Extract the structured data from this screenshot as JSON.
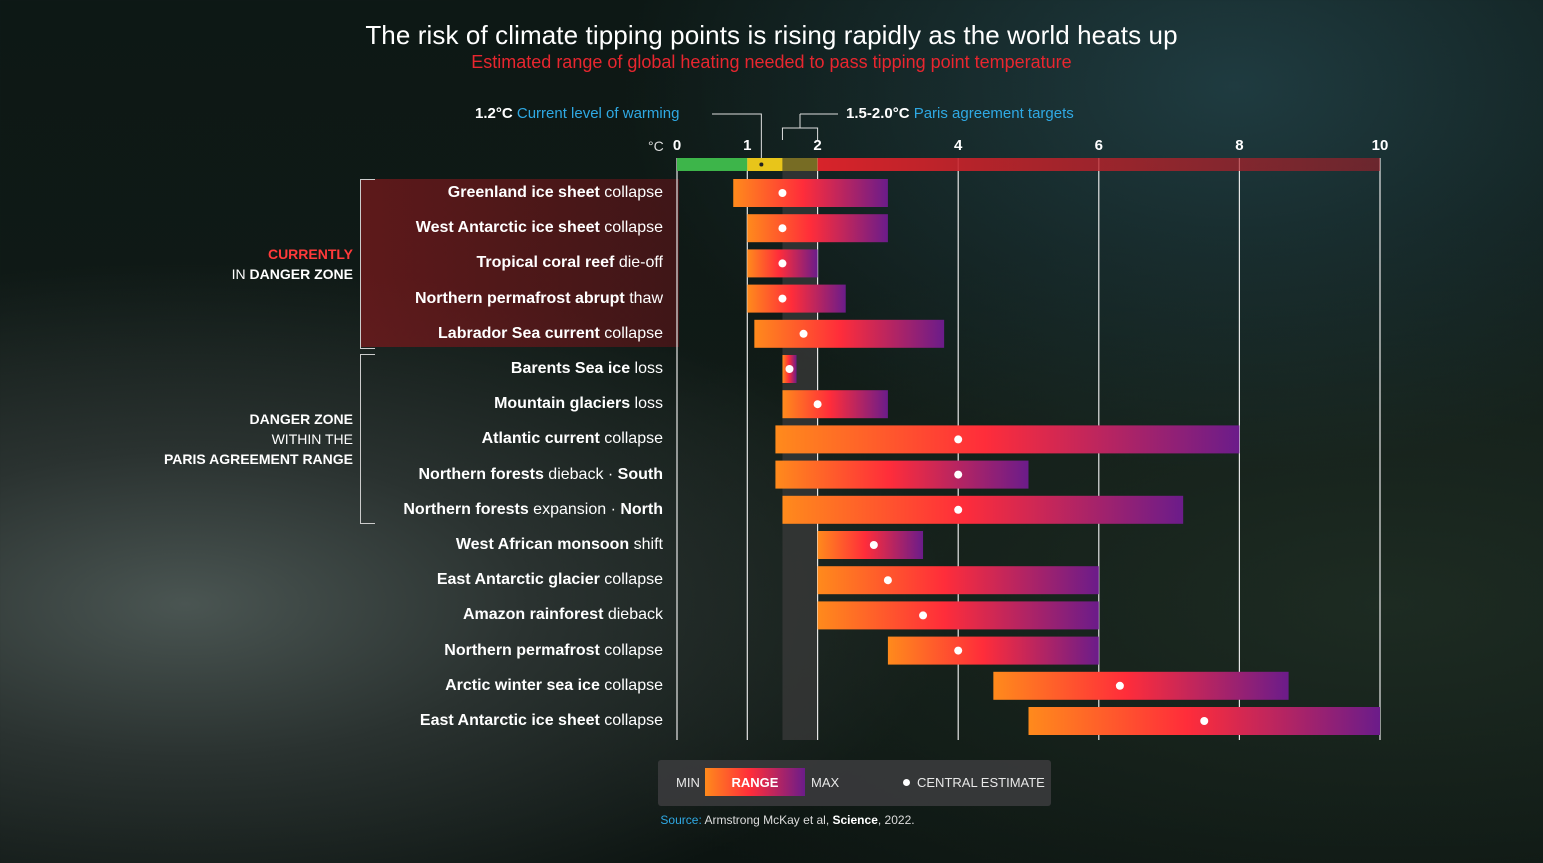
{
  "title": "The risk of climate tipping points is rising rapidly as the world heats up",
  "subtitle": "Estimated range of global heating needed to pass tipping point temperature",
  "current_marker": {
    "value": "1.2°C",
    "label": "Current level of warming"
  },
  "paris_marker": {
    "value": "1.5-2.0°C",
    "label": "Paris agreement targets"
  },
  "unit": "°C",
  "groups": {
    "danger_now": {
      "line1": "CURRENTLY",
      "line2_prefix": "IN ",
      "line2_bold": "DANGER ZONE"
    },
    "danger_paris": {
      "line1": "DANGER ZONE",
      "line2": "WITHIN THE",
      "line3": "PARIS AGREEMENT RANGE"
    }
  },
  "legend": {
    "min": "MIN",
    "range": "RANGE",
    "max": "MAX",
    "central": "CENTRAL ESTIMATE"
  },
  "source": {
    "label": "Source:",
    "text": " Armstrong McKay et al, ",
    "journal": "Science",
    "year": ", 2022."
  },
  "colors": {
    "current_bar_green": "#3db54a",
    "current_bar_yellow": "#e8c51a",
    "scale_red": "#d8232a",
    "range_min": "#ff8a1c",
    "range_mid": "#ff2d3a",
    "range_max": "#6b1c8a",
    "label_blue": "#2fa9e4",
    "subtitle_red": "#e8262f"
  },
  "chart_data": {
    "type": "bar",
    "orientation": "horizontal-range",
    "xlim": [
      0,
      10
    ],
    "x_ticks": [
      0,
      1,
      2,
      4,
      6,
      8,
      10
    ],
    "grid": true,
    "paris_range": [
      1.5,
      2.0
    ],
    "current_warming": 1.2,
    "series": [
      {
        "bold": "Greenland ice sheet",
        "rest": " collapse",
        "min": 0.8,
        "max": 3.0,
        "central": 1.5
      },
      {
        "bold": "West Antarctic ice sheet",
        "rest": " collapse",
        "min": 1.0,
        "max": 3.0,
        "central": 1.5
      },
      {
        "bold": "Tropical coral reef",
        "rest": " die-off",
        "min": 1.0,
        "max": 2.0,
        "central": 1.5
      },
      {
        "bold": "Northern permafrost abrupt",
        "rest": " thaw",
        "min": 1.0,
        "max": 2.4,
        "central": 1.5
      },
      {
        "bold": "Labrador Sea current",
        "rest": " collapse",
        "min": 1.1,
        "max": 3.8,
        "central": 1.8
      },
      {
        "bold": "Barents Sea ice",
        "rest": " loss",
        "min": 1.5,
        "max": 1.7,
        "central": 1.6
      },
      {
        "bold": "Mountain glaciers",
        "rest": " loss",
        "min": 1.5,
        "max": 3.0,
        "central": 2.0
      },
      {
        "bold": "Atlantic current",
        "rest": " collapse",
        "min": 1.4,
        "max": 8.0,
        "central": 4.0
      },
      {
        "bold": "Northern forests",
        "rest": " dieback · ",
        "bold2": "South",
        "min": 1.4,
        "max": 5.0,
        "central": 4.0
      },
      {
        "bold": "Northern forests",
        "rest": " expansion · ",
        "bold2": "North",
        "min": 1.5,
        "max": 7.2,
        "central": 4.0
      },
      {
        "bold": "West African monsoon",
        "rest": " shift",
        "min": 2.0,
        "max": 3.5,
        "central": 2.8
      },
      {
        "bold": "East Antarctic glacier",
        "rest": " collapse",
        "min": 2.0,
        "max": 6.0,
        "central": 3.0
      },
      {
        "bold": "Amazon rainforest",
        "rest": " dieback",
        "min": 2.0,
        "max": 6.0,
        "central": 3.5
      },
      {
        "bold": "Northern permafrost",
        "rest": " collapse",
        "min": 3.0,
        "max": 6.0,
        "central": 4.0
      },
      {
        "bold": "Arctic winter sea ice",
        "rest": " collapse",
        "min": 4.5,
        "max": 8.7,
        "central": 6.3
      },
      {
        "bold": "East Antarctic ice sheet",
        "rest": " collapse",
        "min": 5.0,
        "max": 10.0,
        "central": 7.5
      }
    ]
  }
}
